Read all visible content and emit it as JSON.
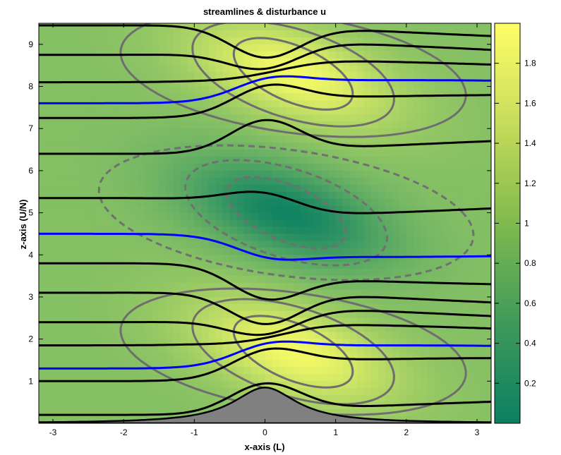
{
  "chart_data": {
    "type": "heatmap",
    "title": "streamlines & disturbance u",
    "xlabel": "x-axis (L)",
    "ylabel": "z-axis (U/N)",
    "xlim": [
      -3.2,
      3.2
    ],
    "ylim": [
      0,
      9.5
    ],
    "x_ticks": [
      "-3",
      "-2",
      "-1",
      "0",
      "1",
      "2",
      "3"
    ],
    "y_ticks": [
      "1",
      "2",
      "3",
      "4",
      "5",
      "6",
      "7",
      "8",
      "9"
    ],
    "colorbar": {
      "range": [
        0,
        2.0
      ],
      "ticks": [
        "0.2",
        "0.4",
        "0.6",
        "0.8",
        "1",
        "1.2",
        "1.4",
        "1.6",
        "1.8"
      ],
      "low_color": "#0b8062",
      "high_color": "#ffff66"
    },
    "field": {
      "background_value": 1.0,
      "features": [
        {
          "kind": "max",
          "x": 0.4,
          "z": 1.7,
          "value": 1.9
        },
        {
          "kind": "min",
          "x": 0.3,
          "z": 5.0,
          "value": 0.05
        },
        {
          "kind": "max",
          "x": 0.4,
          "z": 8.3,
          "value": 1.9
        }
      ]
    },
    "terrain": {
      "color": "#808080",
      "peak_x": 0,
      "peak_height": 0.85
    },
    "streamline_colors": {
      "ordinary": "#000000",
      "highlighted": "#0000ff",
      "contour_solid": "#6e6e6e",
      "contour_dashed": "#707070"
    }
  }
}
